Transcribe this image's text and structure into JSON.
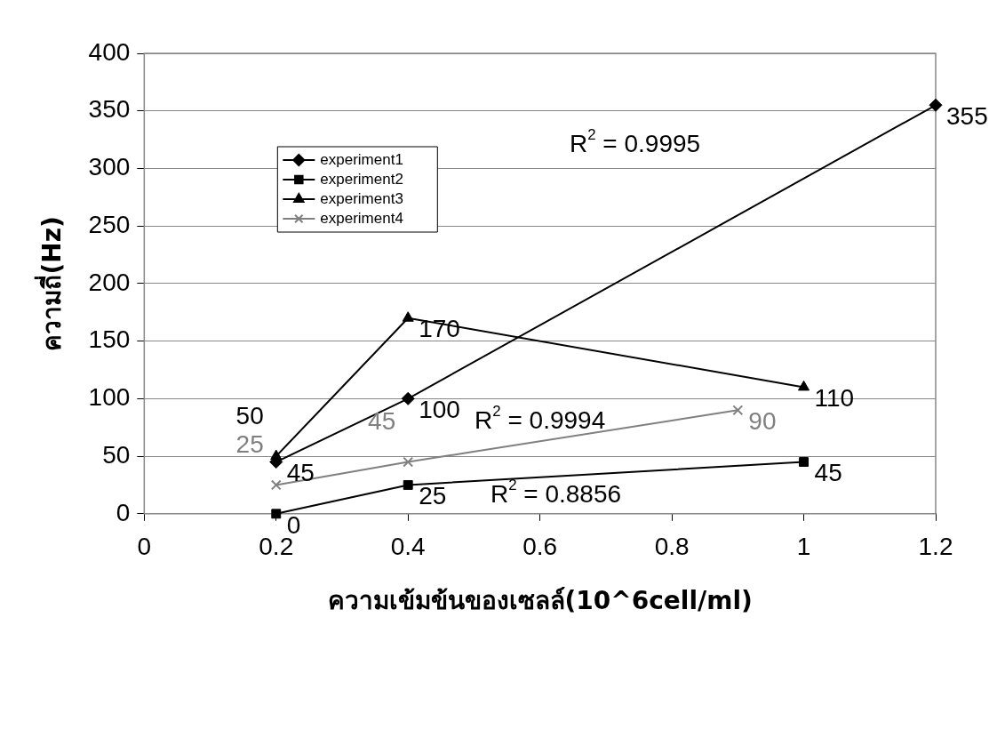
{
  "chart_data": {
    "type": "line",
    "xlabel": "ความเข้มข้นของเซลล์(10^6cell/ml)",
    "ylabel": "ความถี่(Hz)",
    "xlim": [
      0,
      1.2
    ],
    "xticks": [
      0,
      0.2,
      0.4,
      0.6,
      0.8,
      1,
      1.2
    ],
    "ylim": [
      0,
      400
    ],
    "yticks": [
      0,
      50,
      100,
      150,
      200,
      250,
      300,
      350,
      400
    ],
    "grid": "y",
    "legend": "top left",
    "data_labels": true,
    "line_style": "solid",
    "series": [
      {
        "name": "experiment1",
        "color": "#000000",
        "marker": "diamond",
        "x": [
          0.2,
          0.4,
          1.2
        ],
        "values": [
          45,
          100,
          355
        ]
      },
      {
        "name": "experiment2",
        "color": "#000000",
        "marker": "square",
        "x": [
          0.2,
          0.4,
          1
        ],
        "values": [
          0,
          25,
          45
        ]
      },
      {
        "name": "experiment3",
        "color": "#000000",
        "marker": "triangle",
        "x": [
          0.2,
          0.4,
          1
        ],
        "values": [
          50,
          170,
          110
        ]
      },
      {
        "name": "experiment4",
        "color": "#808080",
        "marker": "cross",
        "x": [
          0.2,
          0.4,
          0.9
        ],
        "values": [
          25,
          45,
          90
        ]
      }
    ],
    "annotations": [
      "R$^{2}$ = 0.9995",
      "R$^{2}$ = 0.9994",
      "R$^{2}$ = 0.8856"
    ]
  }
}
